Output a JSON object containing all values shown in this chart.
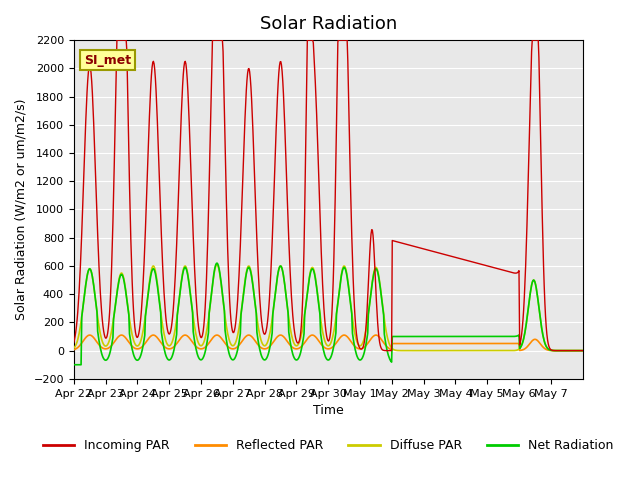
{
  "title": "Solar Radiation",
  "ylabel": "Solar Radiation (W/m2 or um/m2/s)",
  "xlabel": "Time",
  "ylim": [
    -200,
    2200
  ],
  "yticks": [
    -200,
    0,
    200,
    400,
    600,
    800,
    1000,
    1200,
    1400,
    1600,
    1800,
    2000,
    2200
  ],
  "xtick_labels": [
    "Apr 22",
    "Apr 23",
    "Apr 24",
    "Apr 25",
    "Apr 26",
    "Apr 27",
    "Apr 28",
    "Apr 29",
    "Apr 30",
    "May 1",
    "May 2",
    "May 3",
    "May 4",
    "May 5",
    "May 6",
    "May 7"
  ],
  "station_label": "SI_met",
  "colors": {
    "incoming": "#cc0000",
    "reflected": "#ff8c00",
    "diffuse": "#cccc00",
    "net": "#00cc00"
  },
  "legend_labels": [
    "Incoming PAR",
    "Reflected PAR",
    "Diffuse PAR",
    "Net Radiation"
  ],
  "background_color": "#e8e8e8",
  "fig_background": "#ffffff",
  "title_fontsize": 13,
  "label_fontsize": 9,
  "tick_fontsize": 8
}
